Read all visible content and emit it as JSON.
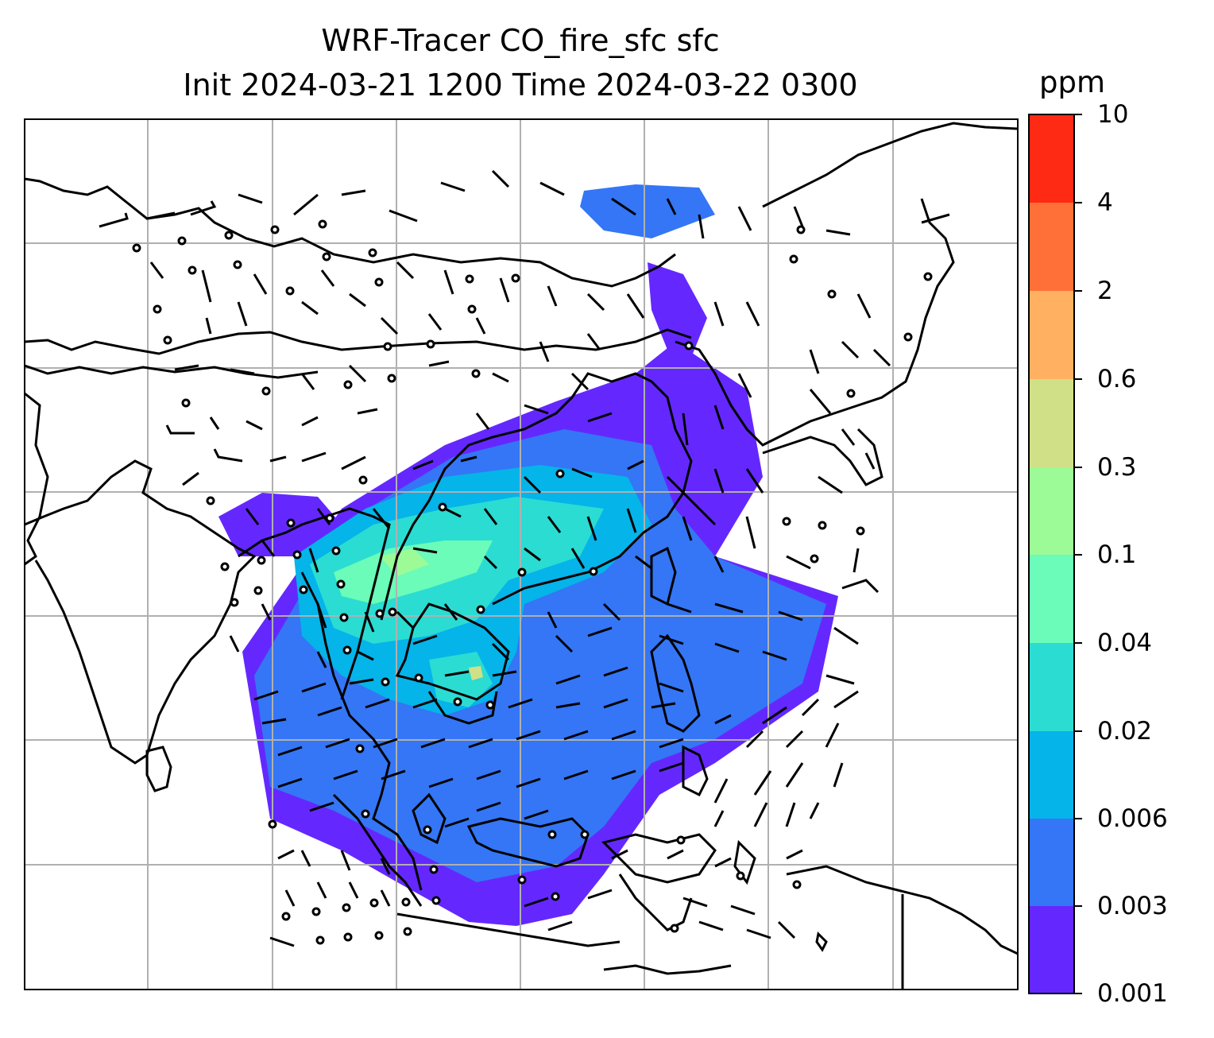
{
  "title": {
    "line1": "WRF-Tracer CO_fire_sfc sfc",
    "line2": "Init 2024-03-21 1200 Time 2024-03-22 0300"
  },
  "colorbar": {
    "units": "ppm",
    "levels": [
      "0.001",
      "0.003",
      "0.006",
      "0.02",
      "0.04",
      "0.1",
      "0.3",
      "0.6",
      "2",
      "4",
      "10"
    ],
    "colors": [
      "#6428ff",
      "#3476f5",
      "#05b4e9",
      "#2bdcd2",
      "#6afcb8",
      "#9cfb96",
      "#d0e086",
      "#ffb060",
      "#ff7038",
      "#ff2a14"
    ]
  },
  "map": {
    "gridlines": true,
    "overlay": "wind barbs",
    "coastline_color": "#000000",
    "gridline_color": "#b0b0b0"
  }
}
